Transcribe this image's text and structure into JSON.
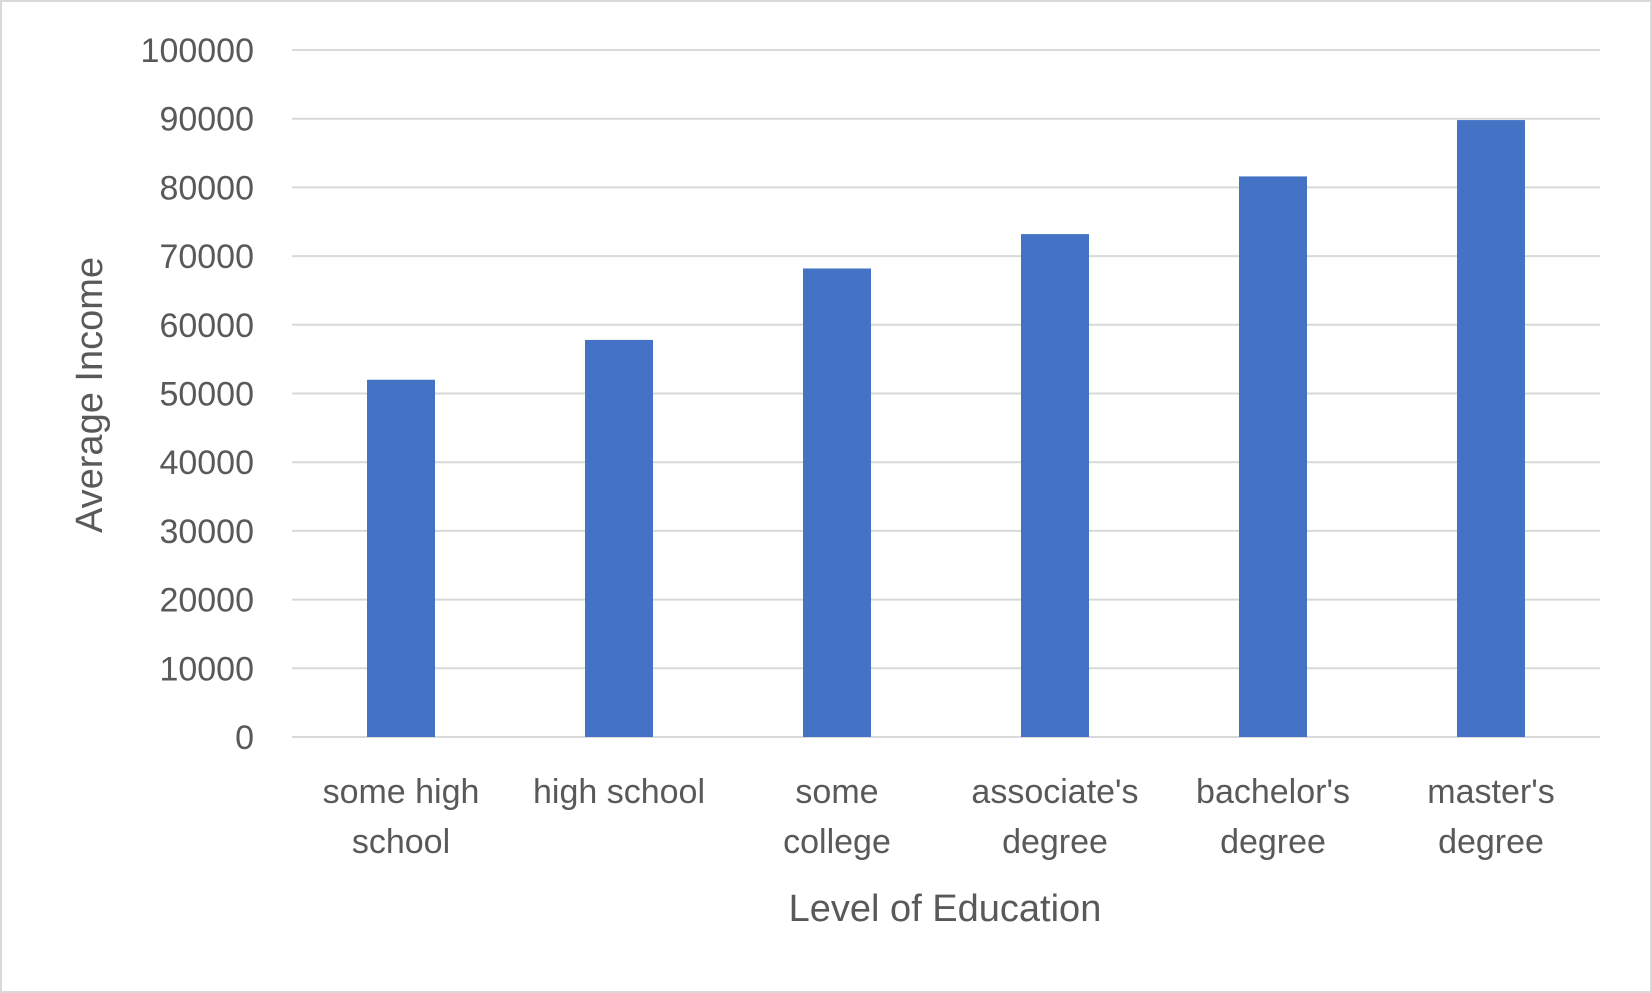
{
  "chart_data": {
    "type": "bar",
    "title": "",
    "xlabel": "Level of Education",
    "ylabel": "Average Income",
    "categories": [
      [
        "some high",
        "school"
      ],
      [
        "high school"
      ],
      [
        "some",
        "college"
      ],
      [
        "associate's",
        "degree"
      ],
      [
        "bachelor's",
        "degree"
      ],
      [
        "master's",
        "degree"
      ]
    ],
    "values": [
      52000,
      57800,
      68200,
      73200,
      81600,
      89800
    ],
    "ylim": [
      0,
      100000
    ],
    "yticks": [
      "0",
      "10000",
      "20000",
      "30000",
      "40000",
      "50000",
      "60000",
      "70000",
      "80000",
      "90000",
      "100000"
    ],
    "grid": true,
    "legend": "none",
    "colors": {
      "bar": "#4472c4",
      "grid": "#d9d9d9",
      "text": "#595959",
      "border": "#d9d9d9"
    }
  }
}
